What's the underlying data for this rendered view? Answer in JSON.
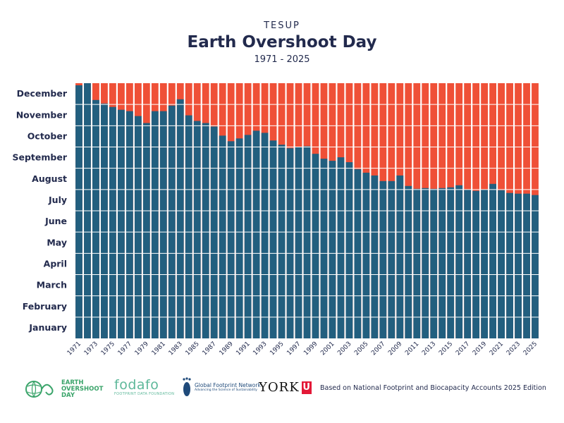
{
  "header": {
    "brand": "TESUP",
    "title": "Earth Overshoot Day",
    "subtitle": "1971 - 2025"
  },
  "colors": {
    "demand": "#225f7f",
    "overshoot": "#ef5037",
    "text": "#222a4d",
    "grid": "#ffffff"
  },
  "chart_data": {
    "type": "bar",
    "title": "Earth Overshoot Day",
    "subtitle": "1971 - 2025",
    "stacked": true,
    "grid": true,
    "y_categories": [
      "January",
      "February",
      "March",
      "April",
      "May",
      "June",
      "July",
      "August",
      "September",
      "October",
      "November",
      "December"
    ],
    "ylim": [
      0,
      365
    ],
    "x_tick_labels": [
      "1971",
      "1973",
      "1975",
      "1977",
      "1979",
      "1981",
      "1983",
      "1985",
      "1987",
      "1989",
      "1991",
      "1993",
      "1995",
      "1997",
      "1999",
      "2001",
      "2003",
      "2005",
      "2007",
      "2009",
      "2011",
      "2013",
      "2015",
      "2017",
      "2019",
      "2021",
      "2023",
      "2025"
    ],
    "categories": [
      1971,
      1972,
      1973,
      1974,
      1975,
      1976,
      1977,
      1978,
      1979,
      1980,
      1981,
      1982,
      1983,
      1984,
      1985,
      1986,
      1987,
      1988,
      1989,
      1990,
      1991,
      1992,
      1993,
      1994,
      1995,
      1996,
      1997,
      1998,
      1999,
      2000,
      2001,
      2002,
      2003,
      2004,
      2005,
      2006,
      2007,
      2008,
      2009,
      2010,
      2011,
      2012,
      2013,
      2014,
      2015,
      2016,
      2017,
      2018,
      2019,
      2020,
      2021,
      2022,
      2023,
      2024,
      2025
    ],
    "series": [
      {
        "name": "",
        "values": [
          362,
          365,
          341,
          336,
          331,
          327,
          325,
          318,
          308,
          325,
          325,
          333,
          342,
          319,
          311,
          308,
          303,
          290,
          282,
          286,
          291,
          297,
          294,
          283,
          277,
          272,
          274,
          275,
          264,
          257,
          254,
          259,
          252,
          242,
          237,
          233,
          225,
          225,
          233,
          218,
          214,
          215,
          214,
          215,
          216,
          219,
          213,
          211,
          213,
          221,
          212,
          208,
          207,
          207,
          205
        ]
      }
    ]
  },
  "footer": {
    "eod_logo": "EARTH\nOVERSHOOT\nDAY",
    "eod_logo_lines": [
      "EARTH",
      "OVERSHOOT",
      "DAY"
    ],
    "fodafo_name": "fodafo",
    "fodafo_sub": "FOOTPRINT DATA FOUNDATION",
    "gfn_name": "Global Footprint Network",
    "gfn_tag": "Advancing the Science of Sustainability",
    "york_name": "YORK",
    "york_u": "U",
    "source": "Based on National Footprint and Biocapacity Accounts 2025 Edition"
  }
}
